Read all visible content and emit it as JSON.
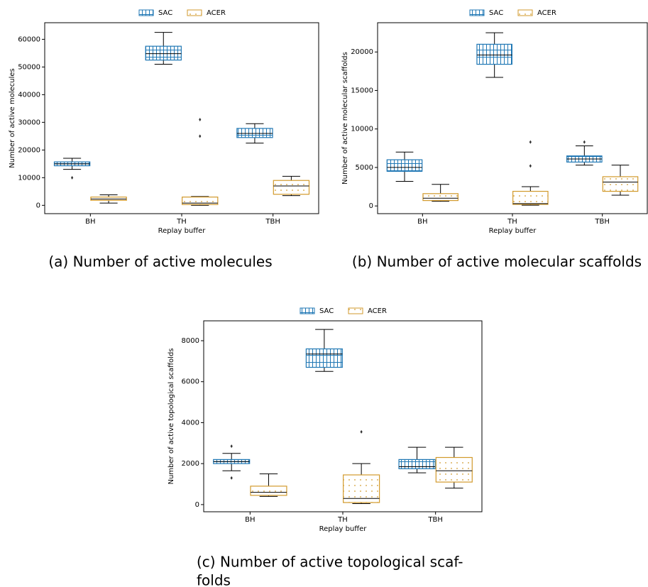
{
  "chart_data": [
    {
      "type": "box",
      "caption": [
        "(a) Number of active molecules"
      ],
      "xlabel": "Replay buffer",
      "ylabel": "Number of active molecules",
      "categories": [
        "BH",
        "TH",
        "TBH"
      ],
      "series": [
        {
          "name": "SAC",
          "color": "#1f77b4",
          "hatch": "grid",
          "boxes": [
            {
              "whislo": 13000,
              "q1": 14300,
              "median": 15000,
              "q3": 15700,
              "whishi": 17000,
              "outliers": [
                10000
              ]
            },
            {
              "whislo": 51000,
              "q1": 52500,
              "median": 54800,
              "q3": 57500,
              "whishi": 62500
            },
            {
              "whislo": 22500,
              "q1": 24500,
              "median": 26000,
              "q3": 27800,
              "whishi": 29500
            }
          ]
        },
        {
          "name": "ACER",
          "color": "#d29a2c",
          "hatch": "dots",
          "boxes": [
            {
              "whislo": 800,
              "q1": 1800,
              "median": 2300,
              "q3": 3000,
              "whishi": 3800
            },
            {
              "whislo": 0,
              "q1": 300,
              "median": 800,
              "q3": 3000,
              "whishi": 3200,
              "outliers": [
                31000,
                25000
              ]
            },
            {
              "whislo": 3500,
              "q1": 4000,
              "median": 7000,
              "q3": 9000,
              "whishi": 10500
            }
          ]
        }
      ],
      "ylim": [
        -3000,
        66000
      ],
      "yticks": [
        0,
        10000,
        20000,
        30000,
        40000,
        50000,
        60000
      ]
    },
    {
      "type": "box",
      "caption": [
        "(b) Number of active molecular scaffolds"
      ],
      "xlabel": "Replay buffer",
      "ylabel": "Number of active molecular scaffolds",
      "categories": [
        "BH",
        "TH",
        "TBH"
      ],
      "series": [
        {
          "name": "SAC",
          "color": "#1f77b4",
          "hatch": "grid",
          "boxes": [
            {
              "whislo": 3200,
              "q1": 4500,
              "median": 5000,
              "q3": 6000,
              "whishi": 7000
            },
            {
              "whislo": 16700,
              "q1": 18400,
              "median": 19600,
              "q3": 21000,
              "whishi": 22500
            },
            {
              "whislo": 5300,
              "q1": 5700,
              "median": 6100,
              "q3": 6500,
              "whishi": 7800,
              "outliers": [
                8300
              ]
            }
          ]
        },
        {
          "name": "ACER",
          "color": "#d29a2c",
          "hatch": "dots",
          "boxes": [
            {
              "whislo": 600,
              "q1": 700,
              "median": 1000,
              "q3": 1600,
              "whishi": 2800
            },
            {
              "whislo": 100,
              "q1": 200,
              "median": 300,
              "q3": 1900,
              "whishi": 2500,
              "outliers": [
                8300,
                5200
              ]
            },
            {
              "whislo": 1400,
              "q1": 1900,
              "median": 3100,
              "q3": 3800,
              "whishi": 5300
            }
          ]
        }
      ],
      "ylim": [
        -1000,
        23800
      ],
      "yticks": [
        0,
        5000,
        10000,
        15000,
        20000
      ]
    },
    {
      "type": "box",
      "caption": [
        "(c) Number of active topological scaf-",
        "folds"
      ],
      "xlabel": "Replay buffer",
      "ylabel": "Number of active topological scaffolds",
      "categories": [
        "BH",
        "TH",
        "TBH"
      ],
      "series": [
        {
          "name": "SAC",
          "color": "#1f77b4",
          "hatch": "grid",
          "boxes": [
            {
              "whislo": 1650,
              "q1": 2000,
              "median": 2100,
              "q3": 2200,
              "whishi": 2500,
              "outliers": [
                2850,
                1300
              ]
            },
            {
              "whislo": 6500,
              "q1": 6700,
              "median": 7350,
              "q3": 7600,
              "whishi": 8550
            },
            {
              "whislo": 1550,
              "q1": 1750,
              "median": 1850,
              "q3": 2200,
              "whishi": 2800
            }
          ]
        },
        {
          "name": "ACER",
          "color": "#d29a2c",
          "hatch": "dots",
          "boxes": [
            {
              "whislo": 400,
              "q1": 450,
              "median": 600,
              "q3": 900,
              "whishi": 1500
            },
            {
              "whislo": 50,
              "q1": 100,
              "median": 300,
              "q3": 1450,
              "whishi": 2000,
              "outliers": [
                3550
              ]
            },
            {
              "whislo": 800,
              "q1": 1100,
              "median": 1650,
              "q3": 2300,
              "whishi": 2800
            }
          ]
        }
      ],
      "ylim": [
        -350,
        8970
      ],
      "yticks": [
        0,
        2000,
        4000,
        6000,
        8000
      ]
    }
  ]
}
